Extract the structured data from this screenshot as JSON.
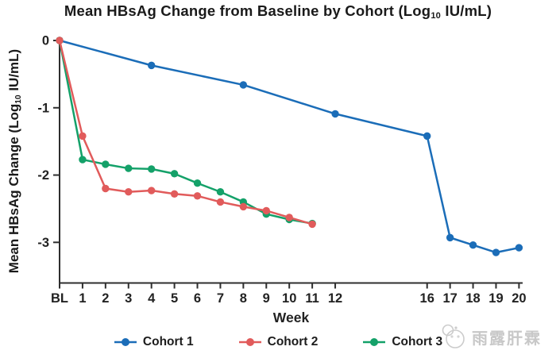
{
  "title": {
    "pre": "Mean HBsAg Change from Baseline by Cohort (Log",
    "sub": "10",
    "post": " IU/mL)"
  },
  "chart_data": {
    "type": "line",
    "title": "Mean HBsAg Change from Baseline by Cohort (Log10 IU/mL)",
    "xlabel": "Week",
    "ylabel": "Mean HBsAg Change (Log10 IU/mL)",
    "ylabel_parts": {
      "pre": "Mean HBsAg Change (Log",
      "sub": "10",
      "post": " IU/mL)"
    },
    "x_tick_labels": [
      "BL",
      "1",
      "2",
      "3",
      "4",
      "5",
      "6",
      "7",
      "8",
      "9",
      "10",
      "11",
      "12",
      "16",
      "17",
      "18",
      "19",
      "20"
    ],
    "x_tick_weeks": [
      0,
      1,
      2,
      3,
      4,
      5,
      6,
      7,
      8,
      9,
      10,
      11,
      12,
      16,
      17,
      18,
      19,
      20
    ],
    "xlim_weeks": [
      0,
      20
    ],
    "y_ticks": [
      0,
      -1,
      -2,
      -3
    ],
    "ylim": [
      -3.6,
      0.05
    ],
    "grid": false,
    "legend_position": "bottom",
    "series": [
      {
        "name": "Cohort 1",
        "color": "#1b6db8",
        "x": [
          0,
          4,
          8,
          12,
          16,
          17,
          18,
          19,
          20
        ],
        "y": [
          0,
          -0.37,
          -0.66,
          -1.09,
          -1.42,
          -2.93,
          -3.04,
          -3.15,
          -3.08
        ]
      },
      {
        "name": "Cohort 2",
        "color": "#e15b5b",
        "x": [
          0,
          1,
          2,
          3,
          4,
          5,
          6,
          7,
          8,
          9,
          10,
          11
        ],
        "y": [
          0,
          -1.42,
          -2.2,
          -2.25,
          -2.23,
          -2.28,
          -2.31,
          -2.4,
          -2.47,
          -2.53,
          -2.63,
          -2.73
        ]
      },
      {
        "name": "Cohort 3",
        "color": "#14a169",
        "x": [
          0,
          1,
          2,
          3,
          4,
          5,
          6,
          7,
          8,
          9,
          10,
          11
        ],
        "y": [
          0,
          -1.77,
          -1.84,
          -1.9,
          -1.91,
          -1.98,
          -2.12,
          -2.25,
          -2.4,
          -2.58,
          -2.66,
          -2.72
        ]
      }
    ]
  },
  "watermark": {
    "icon": "panda-logo-icon",
    "text": "雨露肝霖"
  },
  "colors": {
    "axis": "#2e2e2e",
    "title_text": "#1a1a1a",
    "watermark": "#c8c8c8"
  }
}
